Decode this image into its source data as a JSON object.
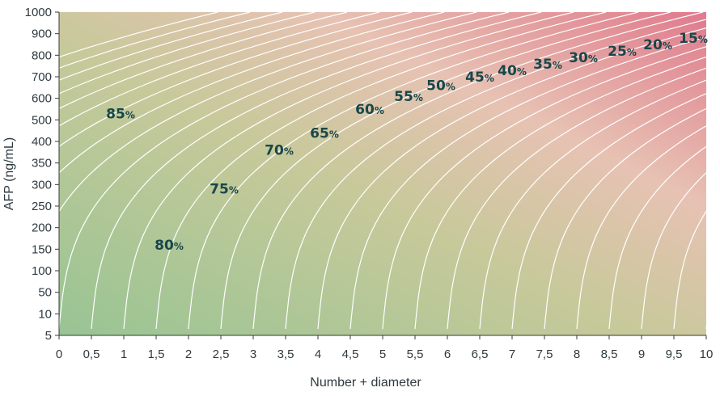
{
  "chart_data": {
    "type": "contour",
    "xlabel": "Number + diameter",
    "ylabel": "AFP (ng/mL)",
    "x_ticks": [
      "0",
      "0,5",
      "1",
      "1,5",
      "2",
      "2,5",
      "3",
      "3,5",
      "4",
      "4,5",
      "5",
      "5,5",
      "6",
      "6,5",
      "7",
      "7,5",
      "8",
      "8,5",
      "9",
      "9,5",
      "10"
    ],
    "y_ticks": [
      "5",
      "10",
      "50",
      "100",
      "150",
      "200",
      "250",
      "300",
      "350",
      "400",
      "500",
      "600",
      "700",
      "800",
      "900",
      "1000"
    ],
    "xlim": [
      0,
      10
    ],
    "colors": {
      "low": "#9dc693",
      "mid": "#c7c998",
      "high": "#e17e90",
      "line": "#ffffff",
      "label": "#18474a",
      "axis": "#3a3a3a"
    },
    "contour_levels": [
      {
        "value": "85",
        "unit": "%",
        "x": 0.95,
        "y": 10.3
      },
      {
        "value": "80",
        "unit": "%",
        "x": 1.7,
        "y": 4.2
      },
      {
        "value": "75",
        "unit": "%",
        "x": 2.55,
        "y": 6.8
      },
      {
        "value": "70",
        "unit": "%",
        "x": 3.4,
        "y": 8.6
      },
      {
        "value": "65",
        "unit": "%",
        "x": 4.1,
        "y": 9.4
      },
      {
        "value": "60",
        "unit": "%",
        "x": 4.8,
        "y": 10.5
      },
      {
        "value": "55",
        "unit": "%",
        "x": 5.4,
        "y": 11.1
      },
      {
        "value": "50",
        "unit": "%",
        "x": 5.9,
        "y": 11.6
      },
      {
        "value": "45",
        "unit": "%",
        "x": 6.5,
        "y": 12.0
      },
      {
        "value": "40",
        "unit": "%",
        "x": 7.0,
        "y": 12.3
      },
      {
        "value": "35",
        "unit": "%",
        "x": 7.55,
        "y": 12.6
      },
      {
        "value": "30",
        "unit": "%",
        "x": 8.1,
        "y": 12.9
      },
      {
        "value": "25",
        "unit": "%",
        "x": 8.7,
        "y": 13.2
      },
      {
        "value": "20",
        "unit": "%",
        "x": 9.25,
        "y": 13.5
      },
      {
        "value": "15",
        "unit": "%",
        "x": 9.8,
        "y": 13.8
      }
    ],
    "note": "contour label positions are (number + diameter, AFP tick index) in data space"
  }
}
